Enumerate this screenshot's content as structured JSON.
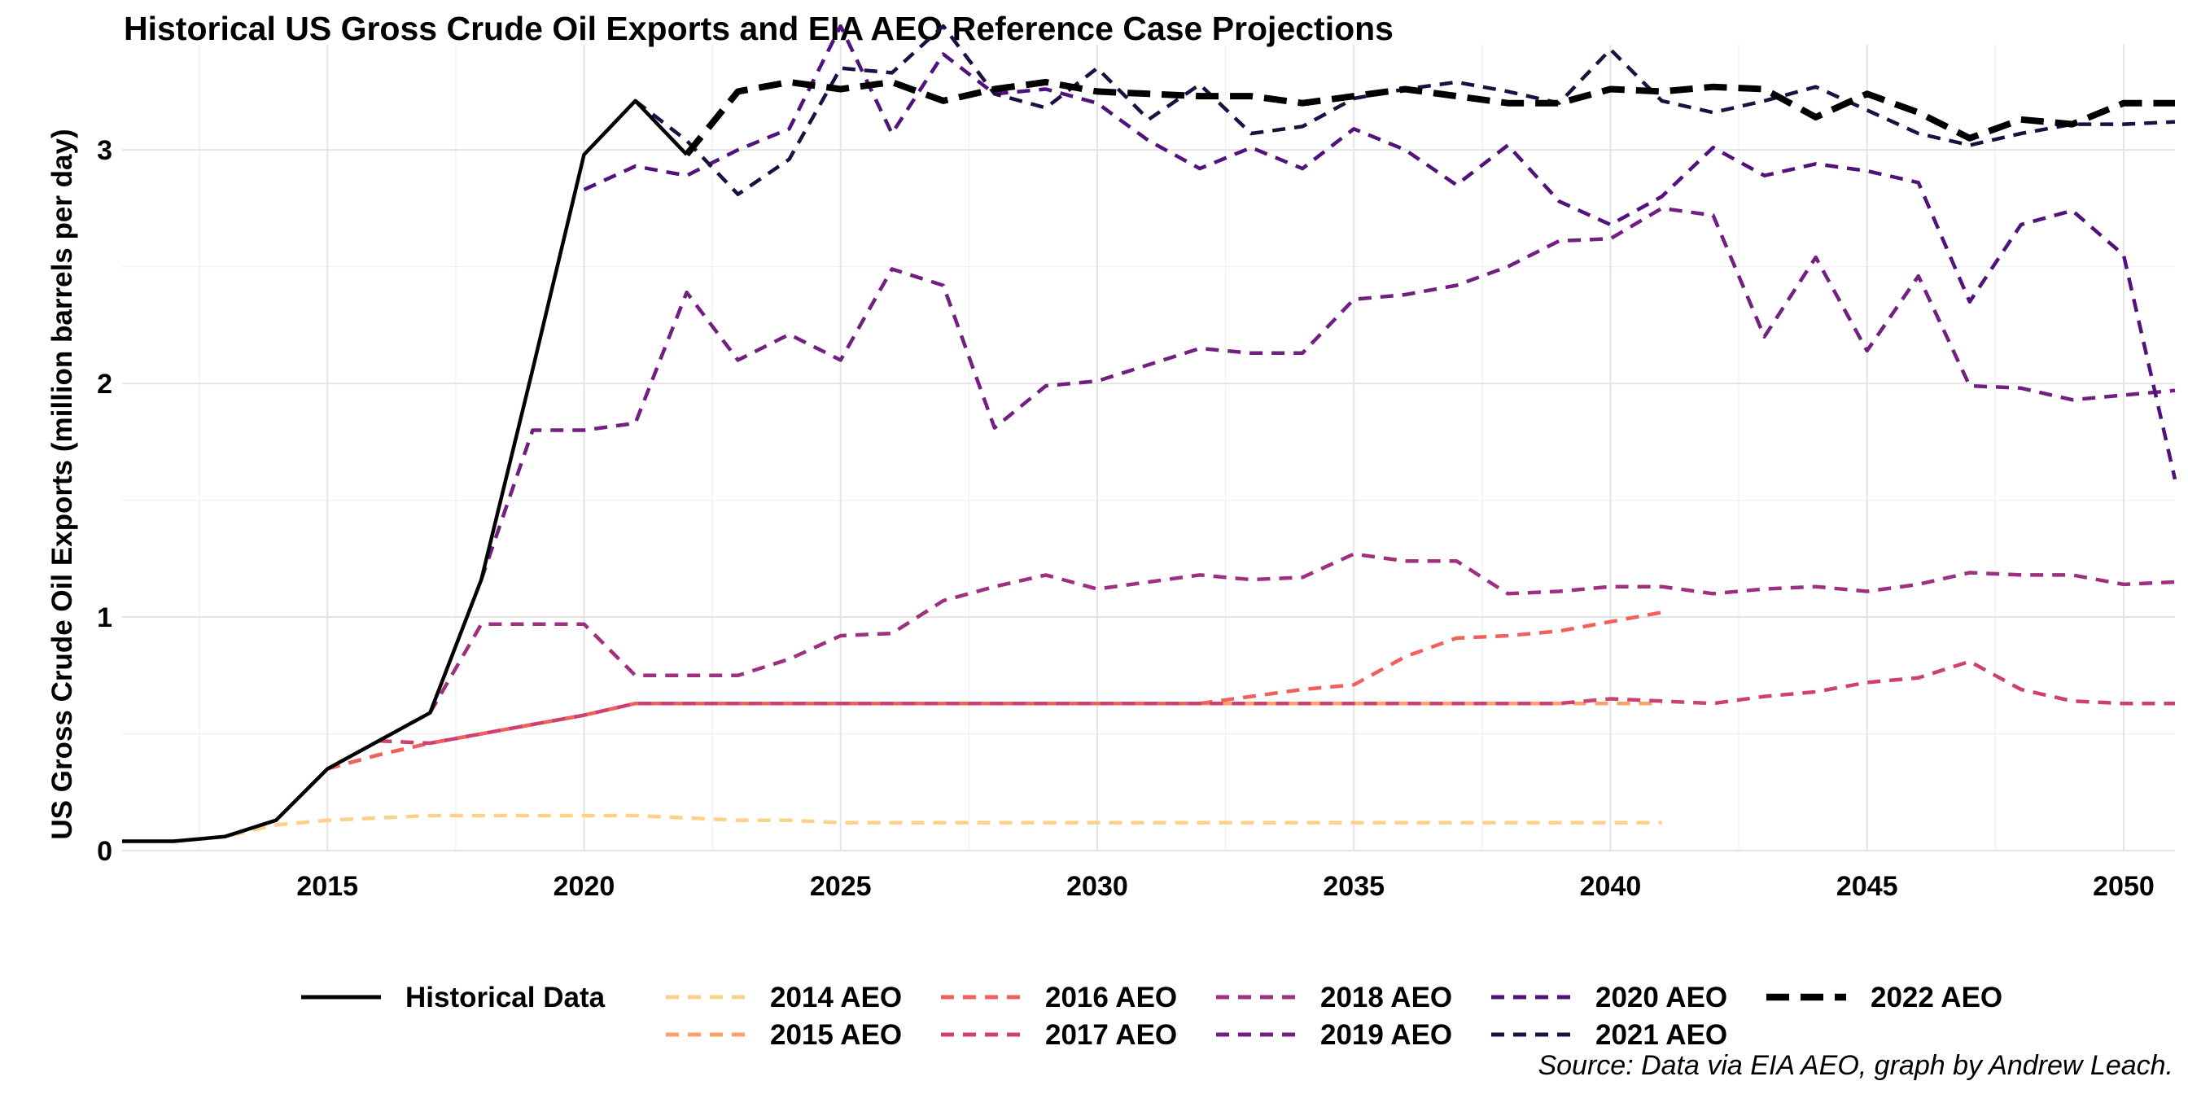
{
  "chart_data": {
    "type": "line",
    "title": "Historical US Gross Crude Oil Exports and EIA AEO Reference Case Projections",
    "xlabel": "",
    "ylabel": "US Gross Crude Oil Exports (million barrels per day)",
    "xlim": [
      2011,
      2051
    ],
    "ylim": [
      0,
      3.45
    ],
    "x_ticks": [
      2015,
      2020,
      2025,
      2030,
      2035,
      2040,
      2045,
      2050
    ],
    "y_ticks": [
      0,
      1,
      2,
      3
    ],
    "grid": true,
    "legend_position": "bottom",
    "source_note": "Source: Data via EIA AEO, graph by Andrew Leach.",
    "series": [
      {
        "name": "Historical Data",
        "color": "#000000",
        "dash": "solid",
        "x": [
          2011,
          2012,
          2013,
          2014,
          2015,
          2016,
          2017,
          2018,
          2019,
          2020,
          2021,
          2022
        ],
        "values": [
          0.04,
          0.04,
          0.06,
          0.13,
          0.35,
          0.47,
          0.59,
          1.16,
          2.06,
          2.98,
          3.21,
          2.98
        ]
      },
      {
        "name": "2014 AEO",
        "color": "#FDD18A",
        "dash": "dashed",
        "x": [
          2011,
          2012,
          2013,
          2014,
          2015,
          2016,
          2017,
          2018,
          2019,
          2020,
          2021,
          2022,
          2023,
          2024,
          2025,
          2026,
          2027,
          2028,
          2029,
          2030,
          2031,
          2032,
          2033,
          2034,
          2035,
          2036,
          2037,
          2038,
          2039,
          2040,
          2041
        ],
        "values": [
          0.04,
          0.04,
          0.06,
          0.11,
          0.13,
          0.14,
          0.15,
          0.15,
          0.15,
          0.15,
          0.15,
          0.14,
          0.13,
          0.13,
          0.12,
          0.12,
          0.12,
          0.12,
          0.12,
          0.12,
          0.12,
          0.12,
          0.12,
          0.12,
          0.12,
          0.12,
          0.12,
          0.12,
          0.12,
          0.12,
          0.12
        ]
      },
      {
        "name": "2015 AEO",
        "color": "#FCA06E",
        "dash": "dashed",
        "x": [
          2015,
          2016,
          2017,
          2018,
          2019,
          2020,
          2021,
          2022,
          2023,
          2024,
          2025,
          2026,
          2027,
          2028,
          2029,
          2030,
          2031,
          2032,
          2033,
          2034,
          2035,
          2036,
          2037,
          2038,
          2039,
          2040,
          2041
        ],
        "values": [
          0.35,
          0.41,
          0.46,
          0.5,
          0.54,
          0.58,
          0.63,
          0.63,
          0.63,
          0.63,
          0.63,
          0.63,
          0.63,
          0.63,
          0.63,
          0.63,
          0.63,
          0.63,
          0.63,
          0.63,
          0.63,
          0.63,
          0.63,
          0.63,
          0.63,
          0.63,
          0.63
        ]
      },
      {
        "name": "2016 AEO",
        "color": "#F1605D",
        "dash": "dashed",
        "x": [
          2015,
          2016,
          2017,
          2018,
          2019,
          2020,
          2021,
          2022,
          2023,
          2024,
          2025,
          2026,
          2027,
          2028,
          2029,
          2030,
          2031,
          2032,
          2033,
          2034,
          2035,
          2036,
          2037,
          2038,
          2039,
          2040,
          2041
        ],
        "values": [
          0.35,
          0.41,
          0.46,
          0.5,
          0.54,
          0.58,
          0.63,
          0.63,
          0.63,
          0.63,
          0.63,
          0.63,
          0.63,
          0.63,
          0.63,
          0.63,
          0.63,
          0.63,
          0.66,
          0.69,
          0.71,
          0.83,
          0.91,
          0.92,
          0.94,
          0.98,
          1.02
        ]
      },
      {
        "name": "2017 AEO",
        "color": "#CD4071",
        "dash": "dashed",
        "x": [
          2016,
          2017,
          2018,
          2019,
          2020,
          2021,
          2022,
          2023,
          2024,
          2025,
          2026,
          2027,
          2028,
          2029,
          2030,
          2031,
          2032,
          2033,
          2034,
          2035,
          2036,
          2037,
          2038,
          2039,
          2040,
          2041,
          2042,
          2043,
          2044,
          2045,
          2046,
          2047,
          2048,
          2049,
          2050,
          2051
        ],
        "values": [
          0.47,
          0.46,
          0.5,
          0.54,
          0.58,
          0.63,
          0.63,
          0.63,
          0.63,
          0.63,
          0.63,
          0.63,
          0.63,
          0.63,
          0.63,
          0.63,
          0.63,
          0.63,
          0.63,
          0.63,
          0.63,
          0.63,
          0.63,
          0.63,
          0.65,
          0.64,
          0.63,
          0.66,
          0.68,
          0.72,
          0.74,
          0.81,
          0.69,
          0.64,
          0.63,
          0.63
        ]
      },
      {
        "name": "2018 AEO",
        "color": "#9F2F7F",
        "dash": "dashed",
        "x": [
          2017,
          2018,
          2019,
          2020,
          2021,
          2022,
          2023,
          2024,
          2025,
          2026,
          2027,
          2028,
          2029,
          2030,
          2031,
          2032,
          2033,
          2034,
          2035,
          2036,
          2037,
          2038,
          2039,
          2040,
          2041,
          2042,
          2043,
          2044,
          2045,
          2046,
          2047,
          2048,
          2049,
          2050,
          2051
        ],
        "values": [
          0.59,
          0.97,
          0.97,
          0.97,
          0.75,
          0.75,
          0.75,
          0.82,
          0.92,
          0.93,
          1.07,
          1.13,
          1.18,
          1.12,
          1.15,
          1.18,
          1.16,
          1.17,
          1.27,
          1.24,
          1.24,
          1.1,
          1.11,
          1.13,
          1.13,
          1.1,
          1.12,
          1.13,
          1.11,
          1.14,
          1.19,
          1.18,
          1.18,
          1.14,
          1.15
        ]
      },
      {
        "name": "2019 AEO",
        "color": "#721F81",
        "dash": "dashed",
        "x": [
          2018,
          2019,
          2020,
          2021,
          2022,
          2023,
          2024,
          2025,
          2026,
          2027,
          2028,
          2029,
          2030,
          2031,
          2032,
          2033,
          2034,
          2035,
          2036,
          2037,
          2038,
          2039,
          2040,
          2041,
          2042,
          2043,
          2044,
          2045,
          2046,
          2047,
          2048,
          2049,
          2050,
          2051
        ],
        "values": [
          1.16,
          1.8,
          1.8,
          1.83,
          2.39,
          2.1,
          2.21,
          2.1,
          2.49,
          2.42,
          1.81,
          1.99,
          2.01,
          2.08,
          2.15,
          2.13,
          2.13,
          2.36,
          2.38,
          2.42,
          2.5,
          2.61,
          2.62,
          2.75,
          2.72,
          2.2,
          2.54,
          2.14,
          2.46,
          1.99,
          1.98,
          1.93,
          1.95,
          1.97
        ]
      },
      {
        "name": "2020 AEO",
        "color": "#51127C",
        "dash": "dashed",
        "x": [
          2020,
          2021,
          2022,
          2023,
          2024,
          2025,
          2026,
          2027,
          2028,
          2029,
          2030,
          2031,
          2032,
          2033,
          2034,
          2035,
          2036,
          2037,
          2038,
          2039,
          2040,
          2041,
          2042,
          2043,
          2044,
          2045,
          2046,
          2047,
          2048,
          2049,
          2050,
          2051
        ],
        "values": [
          2.83,
          2.93,
          2.89,
          3.0,
          3.09,
          3.53,
          3.07,
          3.41,
          3.24,
          3.26,
          3.2,
          3.04,
          2.92,
          3.01,
          2.92,
          3.09,
          3.0,
          2.85,
          3.02,
          2.78,
          2.68,
          2.8,
          3.01,
          2.89,
          2.94,
          2.91,
          2.86,
          2.35,
          2.68,
          2.74,
          2.55,
          1.59
        ]
      },
      {
        "name": "2021 AEO",
        "color": "#1A1042",
        "dash": "dashed",
        "x": [
          2021,
          2022,
          2023,
          2024,
          2025,
          2026,
          2027,
          2028,
          2029,
          2030,
          2031,
          2032,
          2033,
          2034,
          2035,
          2036,
          2037,
          2038,
          2039,
          2040,
          2041,
          2042,
          2043,
          2044,
          2045,
          2046,
          2047,
          2048,
          2049,
          2050,
          2051
        ],
        "values": [
          3.21,
          3.04,
          2.81,
          2.96,
          3.35,
          3.33,
          3.53,
          3.24,
          3.18,
          3.35,
          3.13,
          3.28,
          3.07,
          3.1,
          3.22,
          3.26,
          3.29,
          3.25,
          3.2,
          3.43,
          3.21,
          3.16,
          3.21,
          3.27,
          3.17,
          3.07,
          3.02,
          3.07,
          3.11,
          3.11,
          3.12
        ]
      },
      {
        "name": "2022 AEO",
        "color": "#000000",
        "dash": "thick-dashed",
        "x": [
          2022,
          2023,
          2024,
          2025,
          2026,
          2027,
          2028,
          2029,
          2030,
          2031,
          2032,
          2033,
          2034,
          2035,
          2036,
          2037,
          2038,
          2039,
          2040,
          2041,
          2042,
          2043,
          2044,
          2045,
          2046,
          2047,
          2048,
          2049,
          2050,
          2051
        ],
        "values": [
          2.98,
          3.25,
          3.29,
          3.26,
          3.29,
          3.21,
          3.26,
          3.29,
          3.25,
          3.24,
          3.23,
          3.23,
          3.2,
          3.23,
          3.26,
          3.23,
          3.2,
          3.2,
          3.26,
          3.25,
          3.27,
          3.26,
          3.14,
          3.24,
          3.16,
          3.05,
          3.13,
          3.11,
          3.2,
          3.2
        ]
      }
    ]
  }
}
